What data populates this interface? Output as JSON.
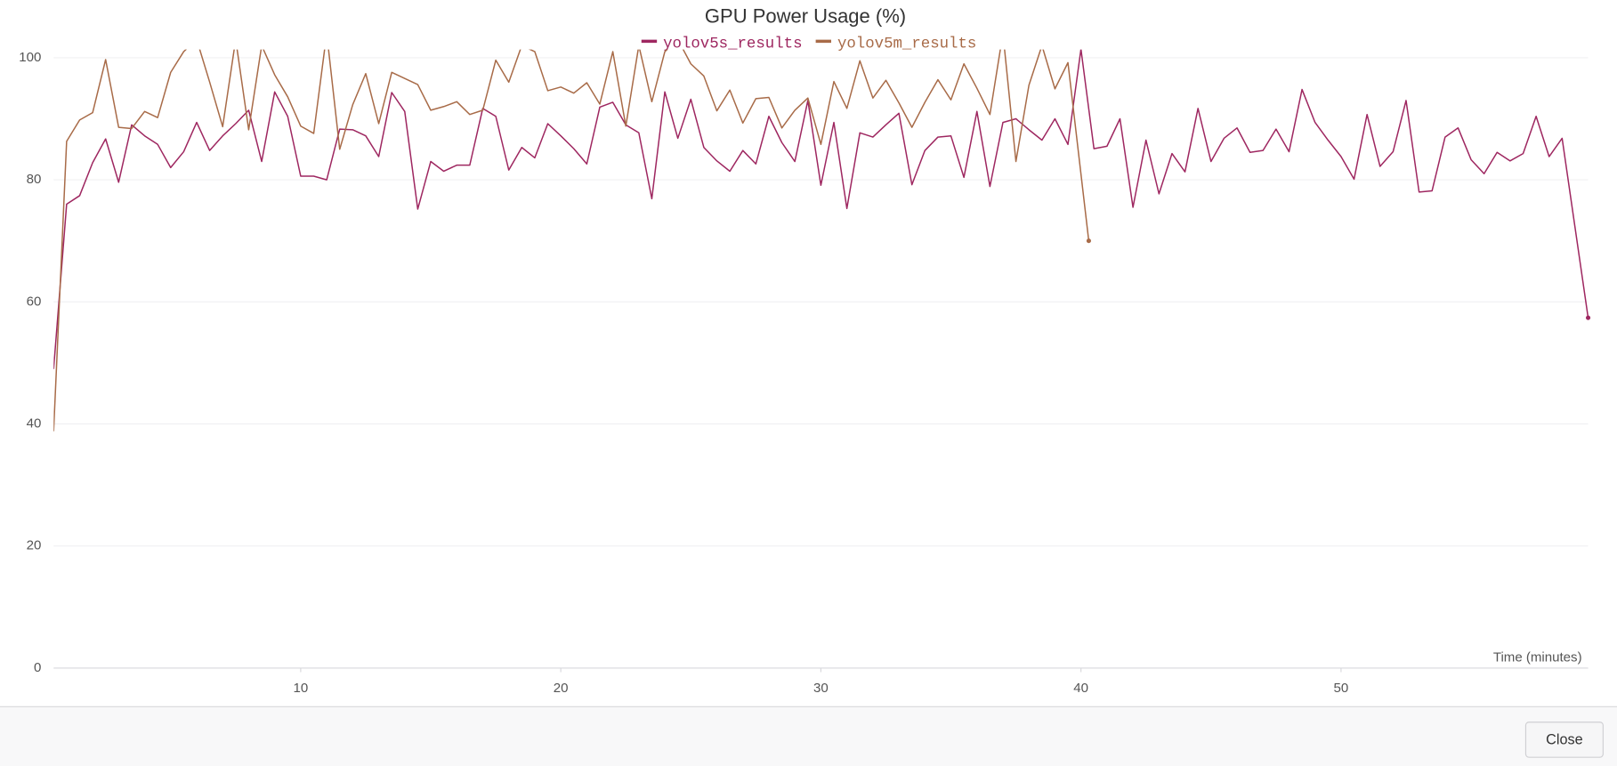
{
  "chart_data": {
    "type": "line",
    "title": "GPU Power Usage (%)",
    "xlabel": "Time (minutes)",
    "xlim": [
      0.5,
      59.5
    ],
    "xticks": [
      10,
      20,
      30,
      40,
      50
    ],
    "ylim": [
      0,
      100
    ],
    "yticks": [
      0,
      20,
      40,
      60,
      80,
      100
    ],
    "grid": true,
    "legend": "top",
    "series": [
      {
        "name": "yolov5s_results",
        "color": "#9e2760",
        "x": [
          0.5,
          1,
          1.5,
          2,
          2.5,
          3,
          3.5,
          4,
          4.5,
          5,
          5.5,
          6,
          6.5,
          7,
          7.5,
          8,
          8.5,
          9,
          9.5,
          10,
          10.5,
          11,
          11.5,
          12,
          12.5,
          13,
          13.5,
          14,
          14.5,
          15,
          15.5,
          16,
          16.5,
          17,
          17.5,
          18,
          18.5,
          19,
          19.5,
          20,
          20.5,
          21,
          21.5,
          22,
          22.5,
          23,
          23.5,
          24,
          24.5,
          25,
          25.5,
          26,
          26.5,
          27,
          27.5,
          28,
          28.5,
          29,
          29.5,
          30,
          30.5,
          31,
          31.5,
          32,
          32.5,
          33,
          33.5,
          34,
          34.5,
          35,
          35.5,
          36,
          36.5,
          37,
          37.5,
          38,
          38.5,
          39,
          39.5,
          40,
          40.5,
          41,
          41.5,
          42,
          42.5,
          43,
          43.5,
          44,
          44.5,
          45,
          45.5,
          46,
          46.5,
          47,
          47.5,
          48,
          48.5,
          49,
          49.5,
          50,
          50.5,
          51,
          51.5,
          52,
          52.5,
          53,
          53.5,
          54,
          54.5,
          55,
          55.5,
          56,
          56.5,
          57,
          57.5,
          58,
          58.5,
          59.5
        ],
        "values": [
          49,
          76,
          77.4,
          82.8,
          86.7,
          79.6,
          89,
          87.2,
          85.8,
          82,
          84.6,
          89.4,
          84.8,
          87.2,
          89.2,
          91.4,
          83,
          94.4,
          90.4,
          80.6,
          80.6,
          80,
          88.3,
          88.2,
          87.2,
          83.8,
          94.3,
          91.2,
          75.2,
          83,
          81.4,
          82.4,
          82.4,
          91.7,
          90.4,
          81.6,
          85.3,
          83.6,
          89.2,
          87.2,
          85.1,
          82.6,
          91.9,
          92.7,
          89,
          87.7,
          76.9,
          94.4,
          86.8,
          93.2,
          85.3,
          83.1,
          81.4,
          84.8,
          82.6,
          90.4,
          86.1,
          83,
          93,
          79.1,
          89.4,
          75.3,
          87.7,
          87,
          89,
          90.9,
          79.2,
          84.8,
          87,
          87.2,
          80.4,
          91.2,
          78.9,
          89.4,
          90,
          88.2,
          86.5,
          90,
          85.8,
          101.4,
          85.1,
          85.5,
          90,
          75.5,
          86.5,
          77.7,
          84.3,
          81.3,
          91.7,
          83,
          86.8,
          88.5,
          84.5,
          84.8,
          88.3,
          84.6,
          94.8,
          89.4,
          86.5,
          83.8,
          80.1,
          90.7,
          82.2,
          84.6,
          93,
          78,
          78.2,
          87,
          88.5,
          83.3,
          81,
          84.5,
          83.1,
          84.3,
          90.4,
          83.8,
          86.8,
          57.4
        ]
      },
      {
        "name": "yolov5m_results",
        "color": "#a86b48",
        "x": [
          0.5,
          1,
          1.5,
          2,
          2.5,
          3,
          3.5,
          4,
          4.5,
          5,
          5.5,
          6,
          6.5,
          7,
          7.5,
          8,
          8.5,
          9,
          9.5,
          10,
          10.5,
          11,
          11.5,
          12,
          12.5,
          13,
          13.5,
          14,
          14.5,
          15,
          15.5,
          16,
          16.5,
          17,
          17.5,
          18,
          18.5,
          19,
          19.5,
          20,
          20.5,
          21,
          21.5,
          22,
          22.5,
          23,
          23.5,
          24,
          24.5,
          25,
          25.5,
          26,
          26.5,
          27,
          27.5,
          28,
          28.5,
          29,
          29.5,
          30,
          30.5,
          31,
          31.5,
          32,
          32.5,
          33,
          33.5,
          34,
          34.5,
          35,
          35.5,
          36,
          36.5,
          37,
          37.5,
          38,
          38.5,
          39,
          39.5,
          40.3
        ],
        "values": [
          38.8,
          86.3,
          89.8,
          91,
          99.7,
          88.6,
          88.4,
          91.2,
          90.2,
          97.6,
          101,
          103,
          96,
          88.7,
          103,
          88.2,
          102,
          97.2,
          93.6,
          88.8,
          87.6,
          104,
          85,
          92.3,
          97.4,
          89.2,
          97.6,
          96.6,
          95.6,
          91.4,
          92,
          92.8,
          90.7,
          91.4,
          99.6,
          96,
          102,
          101,
          94.6,
          95.2,
          94.2,
          95.9,
          92.4,
          101,
          88.8,
          102,
          92.8,
          101,
          103,
          99,
          97,
          91.3,
          94.7,
          89.3,
          93.3,
          93.5,
          88.5,
          91.4,
          93.4,
          85.8,
          96.1,
          91.7,
          99.5,
          93.4,
          96.3,
          92.6,
          88.6,
          92.7,
          96.4,
          93.1,
          99,
          95,
          90.7,
          104,
          83,
          95.5,
          102,
          94.9,
          99.2,
          70
        ]
      }
    ]
  },
  "close_button": "Close"
}
